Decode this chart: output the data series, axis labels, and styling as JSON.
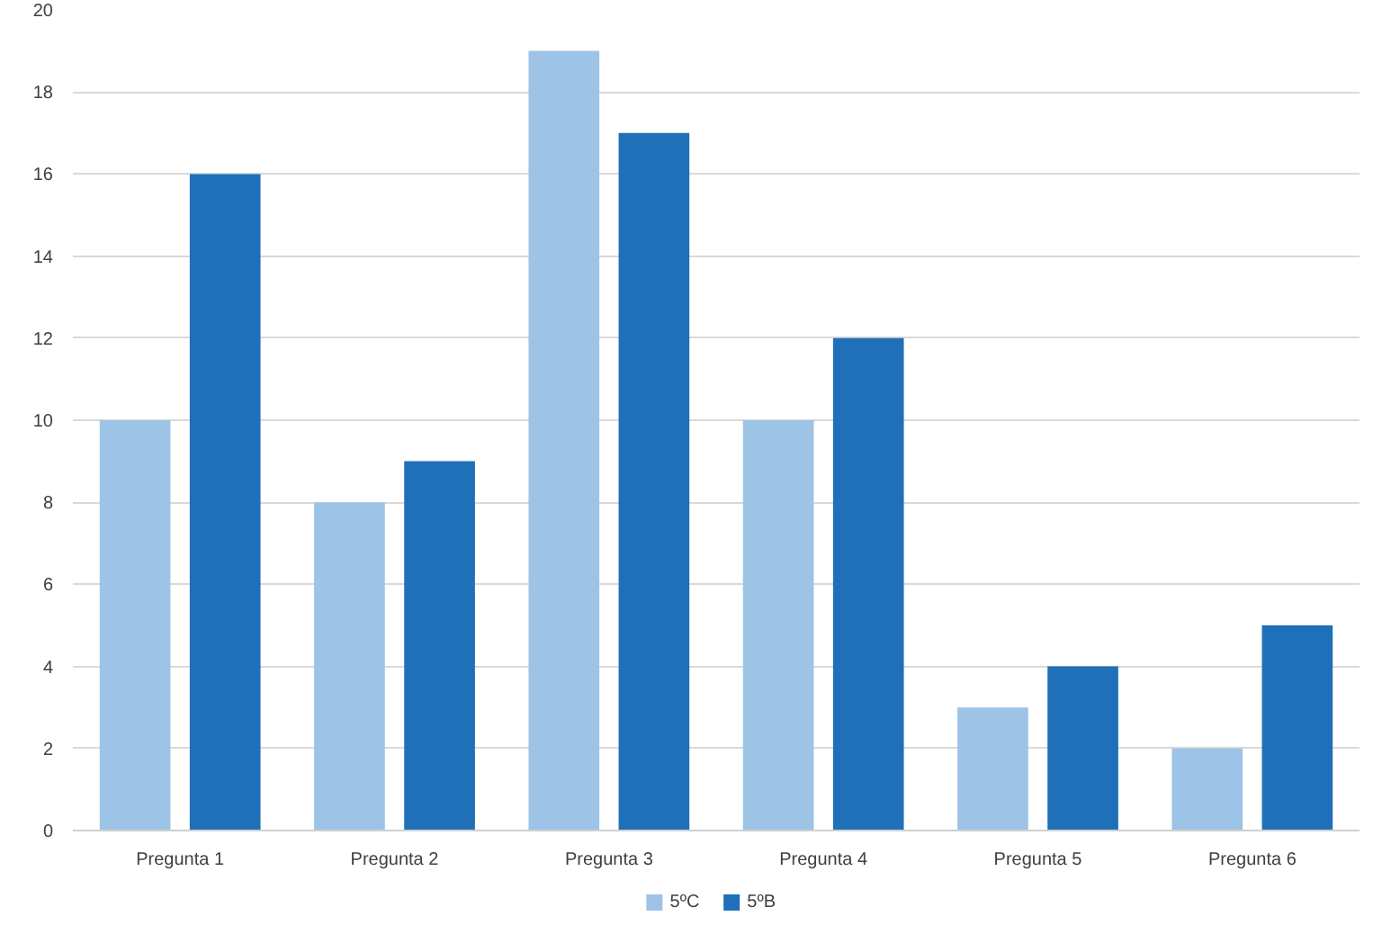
{
  "chart_data": {
    "type": "bar",
    "categories": [
      "Pregunta 1",
      "Pregunta 2",
      "Pregunta 3",
      "Pregunta 4",
      "Pregunta 5",
      "Pregunta 6"
    ],
    "series": [
      {
        "name": "5ºC",
        "color": "#9dc3e6",
        "values": [
          10,
          8,
          19,
          10,
          3,
          2
        ]
      },
      {
        "name": "5ºB",
        "color": "#1f70b8",
        "values": [
          16,
          9,
          17,
          12,
          4,
          5
        ]
      }
    ],
    "ylim": [
      0,
      20
    ],
    "yticks": [
      0,
      2,
      4,
      6,
      8,
      10,
      12,
      14,
      16,
      18,
      20
    ],
    "grid": "y",
    "legend": "bottom"
  }
}
